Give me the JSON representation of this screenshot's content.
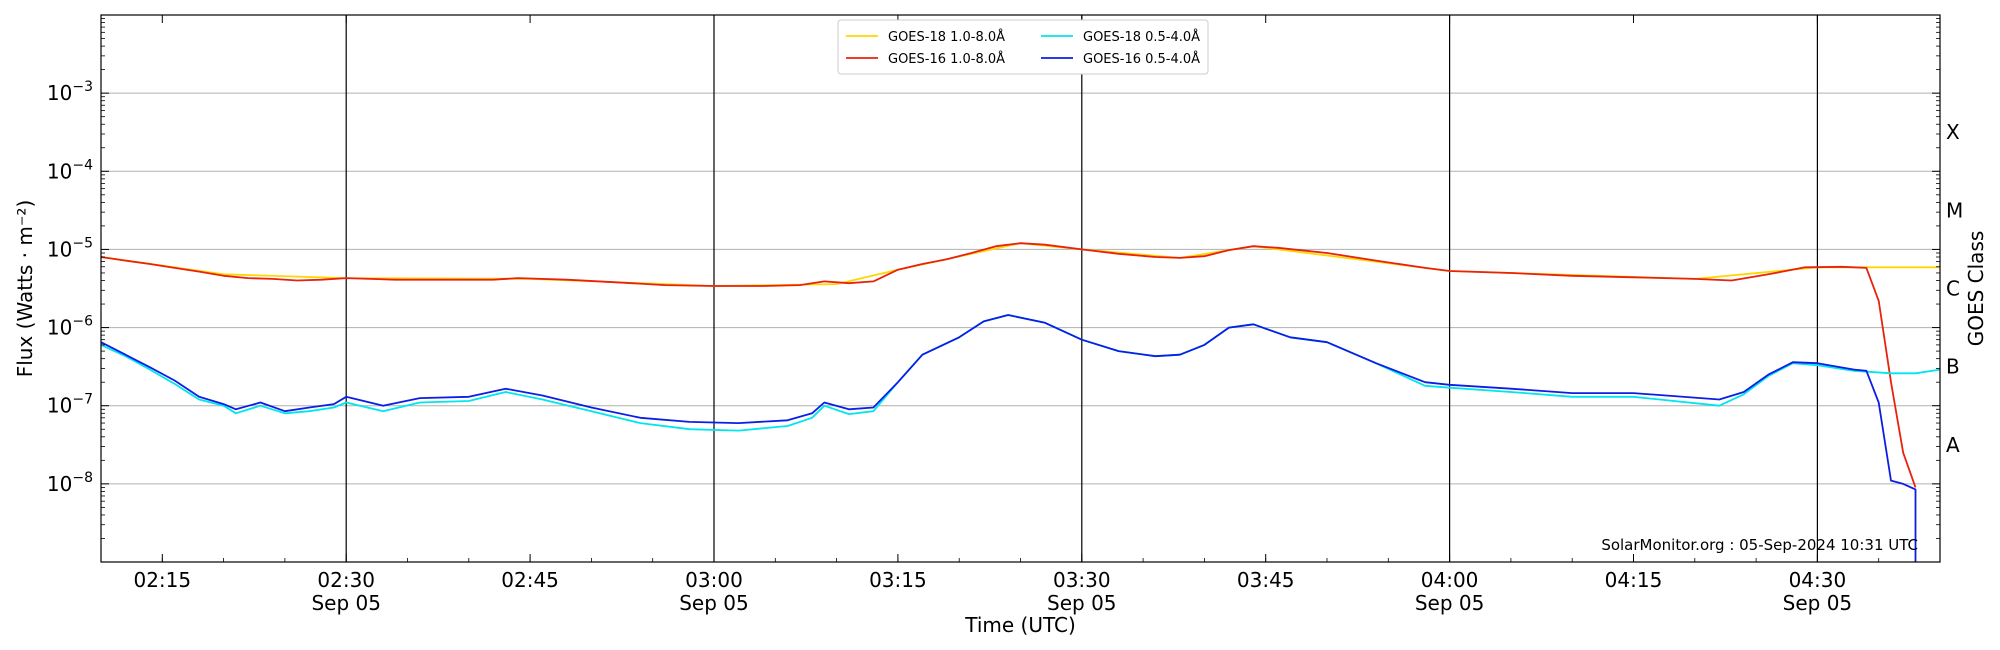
{
  "chart_data": {
    "type": "line",
    "title": "",
    "xlabel": "Time (UTC)",
    "ylabel": "Flux (Watts · m⁻²)",
    "y2label": "GOES Class",
    "yscale": "log",
    "ylim": [
      1e-09,
      0.01
    ],
    "xlim": [
      "02:10",
      "04:40"
    ],
    "grid": "horizontal at decades, vertical at half-hour marks",
    "legend_position": "top-center",
    "credit": "SolarMonitor.org : 05-Sep-2024 10:31 UTC",
    "x_ticks": [
      {
        "time": "02:15",
        "label": "02:15",
        "sub": ""
      },
      {
        "time": "02:30",
        "label": "02:30",
        "sub": "Sep 05"
      },
      {
        "time": "02:45",
        "label": "02:45",
        "sub": ""
      },
      {
        "time": "03:00",
        "label": "03:00",
        "sub": "Sep 05"
      },
      {
        "time": "03:15",
        "label": "03:15",
        "sub": ""
      },
      {
        "time": "03:30",
        "label": "03:30",
        "sub": "Sep 05"
      },
      {
        "time": "03:45",
        "label": "03:45",
        "sub": ""
      },
      {
        "time": "04:00",
        "label": "04:00",
        "sub": "Sep 05"
      },
      {
        "time": "04:15",
        "label": "04:15",
        "sub": ""
      },
      {
        "time": "04:30",
        "label": "04:30",
        "sub": "Sep 05"
      }
    ],
    "y_ticks": [
      {
        "exp": -8,
        "label": "10",
        "sup": "−8"
      },
      {
        "exp": -7,
        "label": "10",
        "sup": "−7"
      },
      {
        "exp": -6,
        "label": "10",
        "sup": "−6"
      },
      {
        "exp": -5,
        "label": "10",
        "sup": "−5"
      },
      {
        "exp": -4,
        "label": "10",
        "sup": "−4"
      },
      {
        "exp": -3,
        "label": "10",
        "sup": "−3"
      }
    ],
    "classes": [
      {
        "label": "A",
        "exp": -7.5
      },
      {
        "label": "B",
        "exp": -6.5
      },
      {
        "label": "C",
        "exp": -5.5
      },
      {
        "label": "M",
        "exp": -4.5
      },
      {
        "label": "X",
        "exp": -3.5
      }
    ],
    "series": [
      {
        "name": "GOES-18 1.0-8.0Å",
        "color": "#ffd700",
        "points": [
          [
            "02:10",
            8e-06
          ],
          [
            "02:20",
            4.8e-06
          ],
          [
            "02:30",
            4.3e-06
          ],
          [
            "02:45",
            4.2e-06
          ],
          [
            "03:00",
            3.4e-06
          ],
          [
            "03:10",
            3.6e-06
          ],
          [
            "03:15",
            5.5e-06
          ],
          [
            "03:25",
            1.2e-05
          ],
          [
            "03:30",
            1e-05
          ],
          [
            "03:38",
            7.8e-06
          ],
          [
            "03:44",
            1.1e-05
          ],
          [
            "04:00",
            5.3e-06
          ],
          [
            "04:20",
            4.2e-06
          ],
          [
            "04:30",
            5.9e-06
          ],
          [
            "04:35",
            5.9e-06
          ],
          [
            "04:40",
            5.9e-06
          ]
        ]
      },
      {
        "name": "GOES-16 1.0-8.0Å",
        "color": "#e8220d",
        "points": [
          [
            "02:10",
            8e-06
          ],
          [
            "02:12",
            7.2e-06
          ],
          [
            "02:14",
            6.5e-06
          ],
          [
            "02:16",
            5.8e-06
          ],
          [
            "02:18",
            5.2e-06
          ],
          [
            "02:20",
            4.6e-06
          ],
          [
            "02:22",
            4.3e-06
          ],
          [
            "02:24",
            4.2e-06
          ],
          [
            "02:26",
            4e-06
          ],
          [
            "02:28",
            4.1e-06
          ],
          [
            "02:30",
            4.3e-06
          ],
          [
            "02:34",
            4.1e-06
          ],
          [
            "02:38",
            4.1e-06
          ],
          [
            "02:42",
            4.1e-06
          ],
          [
            "02:44",
            4.3e-06
          ],
          [
            "02:48",
            4.1e-06
          ],
          [
            "02:52",
            3.8e-06
          ],
          [
            "02:56",
            3.5e-06
          ],
          [
            "03:00",
            3.4e-06
          ],
          [
            "03:04",
            3.4e-06
          ],
          [
            "03:07",
            3.5e-06
          ],
          [
            "03:09",
            3.9e-06
          ],
          [
            "03:11",
            3.7e-06
          ],
          [
            "03:13",
            3.9e-06
          ],
          [
            "03:15",
            5.5e-06
          ],
          [
            "03:17",
            6.5e-06
          ],
          [
            "03:19",
            7.5e-06
          ],
          [
            "03:21",
            9e-06
          ],
          [
            "03:23",
            1.1e-05
          ],
          [
            "03:25",
            1.2e-05
          ],
          [
            "03:27",
            1.15e-05
          ],
          [
            "03:30",
            1e-05
          ],
          [
            "03:33",
            8.8e-06
          ],
          [
            "03:36",
            8e-06
          ],
          [
            "03:38",
            7.8e-06
          ],
          [
            "03:40",
            8.2e-06
          ],
          [
            "03:42",
            9.8e-06
          ],
          [
            "03:44",
            1.1e-05
          ],
          [
            "03:46",
            1.05e-05
          ],
          [
            "03:50",
            9e-06
          ],
          [
            "03:54",
            7.2e-06
          ],
          [
            "03:58",
            5.8e-06
          ],
          [
            "04:00",
            5.3e-06
          ],
          [
            "04:05",
            5e-06
          ],
          [
            "04:10",
            4.6e-06
          ],
          [
            "04:15",
            4.4e-06
          ],
          [
            "04:20",
            4.2e-06
          ],
          [
            "04:23",
            4e-06
          ],
          [
            "04:26",
            4.8e-06
          ],
          [
            "04:29",
            5.9e-06
          ],
          [
            "04:32",
            6e-06
          ],
          [
            "04:34",
            5.8e-06
          ],
          [
            "04:35",
            2.2e-06
          ],
          [
            "04:36",
            2e-07
          ],
          [
            "04:37",
            2.5e-08
          ],
          [
            "04:38",
            9e-09
          ]
        ]
      },
      {
        "name": "GOES-18 0.5-4.0Å",
        "color": "#00e5ee",
        "points": [
          [
            "02:10",
            6e-07
          ],
          [
            "02:12",
            4.3e-07
          ],
          [
            "02:14",
            2.9e-07
          ],
          [
            "02:16",
            1.9e-07
          ],
          [
            "02:18",
            1.2e-07
          ],
          [
            "02:20",
            1e-07
          ],
          [
            "02:21",
            8e-08
          ],
          [
            "02:23",
            1e-07
          ],
          [
            "02:25",
            8e-08
          ],
          [
            "02:27",
            8.5e-08
          ],
          [
            "02:29",
            9.5e-08
          ],
          [
            "02:30",
            1.1e-07
          ],
          [
            "02:33",
            8.5e-08
          ],
          [
            "02:36",
            1.1e-07
          ],
          [
            "02:40",
            1.15e-07
          ],
          [
            "02:43",
            1.5e-07
          ],
          [
            "02:46",
            1.2e-07
          ],
          [
            "02:50",
            8.5e-08
          ],
          [
            "02:54",
            6e-08
          ],
          [
            "02:58",
            5e-08
          ],
          [
            "03:02",
            4.8e-08
          ],
          [
            "03:06",
            5.5e-08
          ],
          [
            "03:08",
            7e-08
          ],
          [
            "03:09",
            1e-07
          ],
          [
            "03:11",
            7.8e-08
          ],
          [
            "03:13",
            8.5e-08
          ],
          [
            "03:15",
            2e-07
          ],
          [
            "03:17",
            4.5e-07
          ],
          [
            "03:20",
            7.5e-07
          ],
          [
            "03:22",
            1.2e-06
          ],
          [
            "03:24",
            1.45e-06
          ],
          [
            "03:27",
            1.15e-06
          ],
          [
            "03:30",
            7e-07
          ],
          [
            "03:33",
            5e-07
          ],
          [
            "03:36",
            4.3e-07
          ],
          [
            "03:38",
            4.5e-07
          ],
          [
            "03:40",
            6e-07
          ],
          [
            "03:42",
            1e-06
          ],
          [
            "03:44",
            1.1e-06
          ],
          [
            "03:47",
            7.5e-07
          ],
          [
            "03:50",
            6.5e-07
          ],
          [
            "03:54",
            3.5e-07
          ],
          [
            "03:58",
            1.8e-07
          ],
          [
            "04:00",
            1.7e-07
          ],
          [
            "04:05",
            1.5e-07
          ],
          [
            "04:10",
            1.3e-07
          ],
          [
            "04:15",
            1.3e-07
          ],
          [
            "04:22",
            1e-07
          ],
          [
            "04:24",
            1.4e-07
          ],
          [
            "04:26",
            2.4e-07
          ],
          [
            "04:28",
            3.5e-07
          ],
          [
            "04:30",
            3.3e-07
          ],
          [
            "04:33",
            2.8e-07
          ],
          [
            "04:36",
            2.6e-07
          ],
          [
            "04:38",
            2.6e-07
          ],
          [
            "04:40",
            2.9e-07
          ]
        ]
      },
      {
        "name": "GOES-16 0.5-4.0Å",
        "color": "#0a1ee6",
        "points": [
          [
            "02:10",
            6.5e-07
          ],
          [
            "02:12",
            4.5e-07
          ],
          [
            "02:14",
            3.1e-07
          ],
          [
            "02:16",
            2.1e-07
          ],
          [
            "02:18",
            1.3e-07
          ],
          [
            "02:20",
            1.05e-07
          ],
          [
            "02:21",
            9e-08
          ],
          [
            "02:23",
            1.1e-07
          ],
          [
            "02:25",
            8.5e-08
          ],
          [
            "02:27",
            9.5e-08
          ],
          [
            "02:29",
            1.05e-07
          ],
          [
            "02:30",
            1.3e-07
          ],
          [
            "02:33",
            1e-07
          ],
          [
            "02:36",
            1.25e-07
          ],
          [
            "02:40",
            1.3e-07
          ],
          [
            "02:43",
            1.65e-07
          ],
          [
            "02:46",
            1.35e-07
          ],
          [
            "02:50",
            9.5e-08
          ],
          [
            "02:54",
            7e-08
          ],
          [
            "02:58",
            6.2e-08
          ],
          [
            "03:02",
            6e-08
          ],
          [
            "03:06",
            6.5e-08
          ],
          [
            "03:08",
            8e-08
          ],
          [
            "03:09",
            1.1e-07
          ],
          [
            "03:11",
            9e-08
          ],
          [
            "03:13",
            9.5e-08
          ],
          [
            "03:15",
            2e-07
          ],
          [
            "03:17",
            4.5e-07
          ],
          [
            "03:20",
            7.5e-07
          ],
          [
            "03:22",
            1.2e-06
          ],
          [
            "03:24",
            1.45e-06
          ],
          [
            "03:27",
            1.15e-06
          ],
          [
            "03:30",
            7e-07
          ],
          [
            "03:33",
            5e-07
          ],
          [
            "03:36",
            4.3e-07
          ],
          [
            "03:38",
            4.5e-07
          ],
          [
            "03:40",
            6e-07
          ],
          [
            "03:42",
            1e-06
          ],
          [
            "03:44",
            1.1e-06
          ],
          [
            "03:47",
            7.5e-07
          ],
          [
            "03:50",
            6.5e-07
          ],
          [
            "03:54",
            3.5e-07
          ],
          [
            "03:58",
            2e-07
          ],
          [
            "04:00",
            1.85e-07
          ],
          [
            "04:05",
            1.65e-07
          ],
          [
            "04:10",
            1.45e-07
          ],
          [
            "04:15",
            1.45e-07
          ],
          [
            "04:22",
            1.2e-07
          ],
          [
            "04:24",
            1.5e-07
          ],
          [
            "04:26",
            2.5e-07
          ],
          [
            "04:28",
            3.6e-07
          ],
          [
            "04:30",
            3.5e-07
          ],
          [
            "04:33",
            2.9e-07
          ],
          [
            "04:34",
            2.8e-07
          ],
          [
            "04:35",
            1.1e-07
          ],
          [
            "04:36",
            1.1e-08
          ],
          [
            "04:37",
            1e-08
          ],
          [
            "04:38",
            8.5e-09
          ],
          [
            "04:38",
            1e-09
          ]
        ]
      }
    ]
  }
}
